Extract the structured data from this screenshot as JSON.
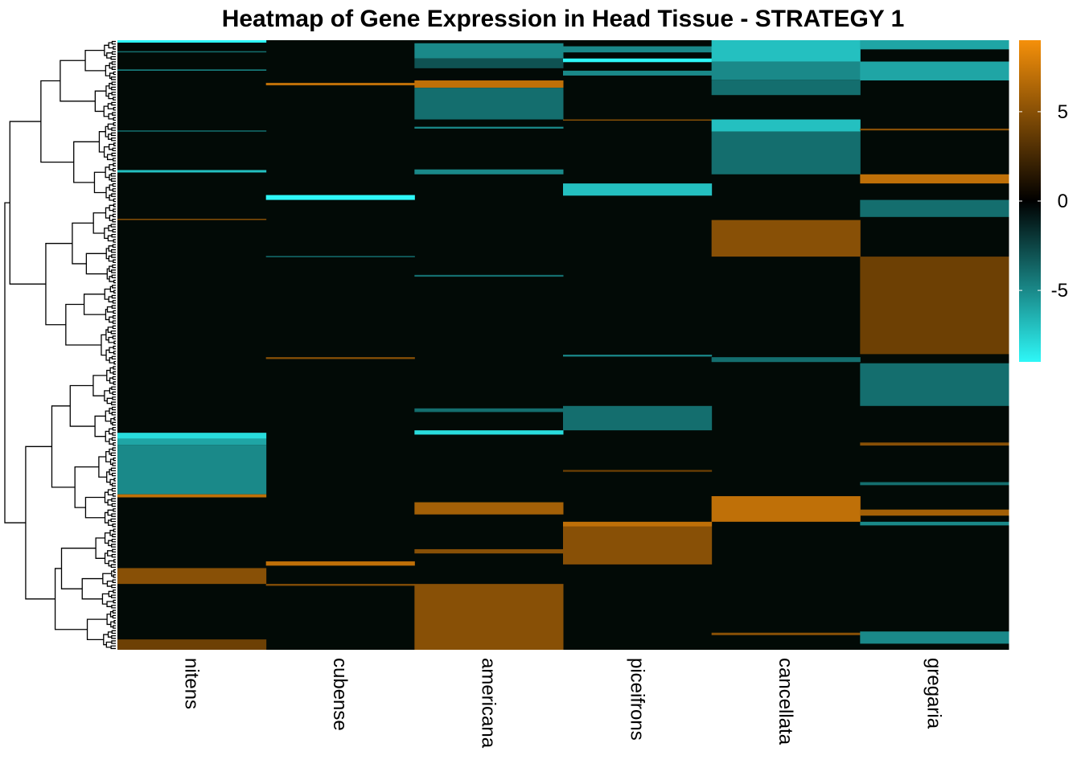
{
  "chart_data": {
    "type": "heatmap",
    "title": "Heatmap of Gene Expression in Head Tissue - STRATEGY 1",
    "columns": [
      "nitens",
      "cubense",
      "americana",
      "piceifrons",
      "cancellata",
      "gregaria"
    ],
    "color_scale": {
      "min": -9,
      "max": 9,
      "ticks": [
        5,
        0,
        -5
      ],
      "tick_labels": [
        "5",
        "0",
        "-5"
      ],
      "low_color": "#2ef7f7",
      "mid_color": "#000000",
      "high_color": "#f5900a"
    },
    "row_dendrogram": true,
    "column_dendrogram": false,
    "row_range": [
      0,
      1
    ],
    "row_range_note": "rows are gene positions from top (0) to bottom (1); values in log-fold expression",
    "blocks": [
      {
        "col": 0,
        "start": 0.0,
        "end": 0.004,
        "value": -9
      },
      {
        "col": 0,
        "start": 0.018,
        "end": 0.02,
        "value": -4
      },
      {
        "col": 0,
        "start": 0.048,
        "end": 0.05,
        "value": -5
      },
      {
        "col": 0,
        "start": 0.148,
        "end": 0.15,
        "value": -4
      },
      {
        "col": 0,
        "start": 0.213,
        "end": 0.217,
        "value": -7
      },
      {
        "col": 0,
        "start": 0.293,
        "end": 0.295,
        "value": 5
      },
      {
        "col": 0,
        "start": 0.644,
        "end": 0.654,
        "value": -8
      },
      {
        "col": 0,
        "start": 0.654,
        "end": 0.664,
        "value": -6
      },
      {
        "col": 0,
        "start": 0.664,
        "end": 0.745,
        "value": -5
      },
      {
        "col": 0,
        "start": 0.745,
        "end": 0.75,
        "value": 7
      },
      {
        "col": 0,
        "start": 0.866,
        "end": 0.892,
        "value": 5
      },
      {
        "col": 0,
        "start": 0.983,
        "end": 1.0,
        "value": 4
      },
      {
        "col": 1,
        "start": 0.07,
        "end": 0.074,
        "value": 7
      },
      {
        "col": 1,
        "start": 0.254,
        "end": 0.262,
        "value": -9
      },
      {
        "col": 1,
        "start": 0.354,
        "end": 0.356,
        "value": -4
      },
      {
        "col": 1,
        "start": 0.52,
        "end": 0.523,
        "value": 5
      },
      {
        "col": 1,
        "start": 0.855,
        "end": 0.862,
        "value": 7
      },
      {
        "col": 1,
        "start": 0.892,
        "end": 0.895,
        "value": 5
      },
      {
        "col": 2,
        "start": 0.005,
        "end": 0.03,
        "value": -5
      },
      {
        "col": 2,
        "start": 0.03,
        "end": 0.046,
        "value": -3
      },
      {
        "col": 2,
        "start": 0.066,
        "end": 0.078,
        "value": 7
      },
      {
        "col": 2,
        "start": 0.078,
        "end": 0.13,
        "value": -4
      },
      {
        "col": 2,
        "start": 0.142,
        "end": 0.145,
        "value": -5
      },
      {
        "col": 2,
        "start": 0.212,
        "end": 0.22,
        "value": -5
      },
      {
        "col": 2,
        "start": 0.385,
        "end": 0.388,
        "value": -4
      },
      {
        "col": 2,
        "start": 0.604,
        "end": 0.61,
        "value": -4
      },
      {
        "col": 2,
        "start": 0.64,
        "end": 0.647,
        "value": -8
      },
      {
        "col": 2,
        "start": 0.758,
        "end": 0.778,
        "value": 6
      },
      {
        "col": 2,
        "start": 0.835,
        "end": 0.842,
        "value": 5
      },
      {
        "col": 2,
        "start": 0.892,
        "end": 1.0,
        "value": 5
      },
      {
        "col": 3,
        "start": 0.01,
        "end": 0.02,
        "value": -5
      },
      {
        "col": 3,
        "start": 0.03,
        "end": 0.036,
        "value": -9
      },
      {
        "col": 3,
        "start": 0.05,
        "end": 0.058,
        "value": -5
      },
      {
        "col": 3,
        "start": 0.13,
        "end": 0.132,
        "value": 5
      },
      {
        "col": 3,
        "start": 0.235,
        "end": 0.255,
        "value": -7
      },
      {
        "col": 3,
        "start": 0.516,
        "end": 0.519,
        "value": -5
      },
      {
        "col": 3,
        "start": 0.6,
        "end": 0.64,
        "value": -4
      },
      {
        "col": 3,
        "start": 0.705,
        "end": 0.708,
        "value": 4
      },
      {
        "col": 3,
        "start": 0.79,
        "end": 0.798,
        "value": 7
      },
      {
        "col": 3,
        "start": 0.798,
        "end": 0.86,
        "value": 5
      },
      {
        "col": 4,
        "start": 0.0,
        "end": 0.035,
        "value": -7
      },
      {
        "col": 4,
        "start": 0.035,
        "end": 0.065,
        "value": -5
      },
      {
        "col": 4,
        "start": 0.065,
        "end": 0.09,
        "value": -4
      },
      {
        "col": 4,
        "start": 0.13,
        "end": 0.15,
        "value": -7
      },
      {
        "col": 4,
        "start": 0.15,
        "end": 0.22,
        "value": -4
      },
      {
        "col": 4,
        "start": 0.295,
        "end": 0.355,
        "value": 5
      },
      {
        "col": 4,
        "start": 0.52,
        "end": 0.528,
        "value": -4
      },
      {
        "col": 4,
        "start": 0.748,
        "end": 0.79,
        "value": 7
      },
      {
        "col": 4,
        "start": 0.972,
        "end": 0.976,
        "value": 5
      },
      {
        "col": 5,
        "start": 0.0,
        "end": 0.015,
        "value": -6
      },
      {
        "col": 5,
        "start": 0.035,
        "end": 0.066,
        "value": -6
      },
      {
        "col": 5,
        "start": 0.145,
        "end": 0.148,
        "value": 5
      },
      {
        "col": 5,
        "start": 0.22,
        "end": 0.235,
        "value": 7
      },
      {
        "col": 5,
        "start": 0.262,
        "end": 0.29,
        "value": -4
      },
      {
        "col": 5,
        "start": 0.355,
        "end": 0.515,
        "value": 4
      },
      {
        "col": 5,
        "start": 0.53,
        "end": 0.6,
        "value": -4
      },
      {
        "col": 5,
        "start": 0.66,
        "end": 0.665,
        "value": 5
      },
      {
        "col": 5,
        "start": 0.725,
        "end": 0.73,
        "value": -4
      },
      {
        "col": 5,
        "start": 0.77,
        "end": 0.78,
        "value": 6
      },
      {
        "col": 5,
        "start": 0.79,
        "end": 0.796,
        "value": -5
      },
      {
        "col": 5,
        "start": 0.97,
        "end": 0.99,
        "value": -5
      }
    ]
  }
}
